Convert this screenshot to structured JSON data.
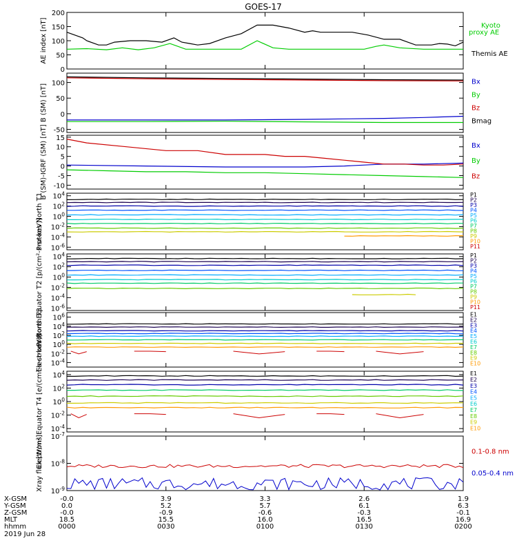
{
  "title": "GOES-17",
  "colors": {
    "black": "#000000",
    "green": "#00cc00",
    "red": "#cc0000",
    "blue": "#0000cc",
    "spectrum": [
      "#000000",
      "#1a0050",
      "#0000aa",
      "#0055ff",
      "#00aaff",
      "#00cccc",
      "#00cc66",
      "#66cc00",
      "#cccc00",
      "#ff9900",
      "#cc0000"
    ]
  },
  "chart_data": [
    {
      "type": "line",
      "panel": "ae",
      "ylabel": "AE index [nT]",
      "yticks": [
        "200",
        "150",
        "100",
        "50",
        "0"
      ],
      "ylim": [
        0,
        200
      ],
      "log": false,
      "series": [
        {
          "name": "Themis AE",
          "color": "#000000",
          "x": [
            0,
            2,
            4,
            5,
            8,
            10,
            12,
            16,
            20,
            24,
            27,
            29,
            31,
            33,
            36,
            40,
            44,
            48,
            52,
            56,
            60,
            62,
            64,
            68,
            72,
            76,
            80,
            84,
            86,
            88,
            90,
            92,
            94,
            96,
            98,
            100
          ],
          "y": [
            130,
            120,
            110,
            100,
            85,
            85,
            95,
            100,
            100,
            95,
            110,
            95,
            90,
            85,
            90,
            110,
            125,
            155,
            155,
            145,
            130,
            135,
            130,
            130,
            130,
            120,
            105,
            105,
            95,
            85,
            85,
            85,
            90,
            88,
            82,
            95
          ]
        },
        {
          "name": "Kyoto proxy AE",
          "color": "#00cc00",
          "x": [
            0,
            5,
            10,
            14,
            18,
            22,
            26,
            30,
            34,
            40,
            44,
            48,
            52,
            56,
            60,
            65,
            70,
            75,
            78,
            80,
            84,
            90,
            95,
            100
          ],
          "y": [
            70,
            72,
            68,
            75,
            68,
            75,
            90,
            70,
            70,
            70,
            70,
            100,
            75,
            70,
            70,
            70,
            70,
            70,
            80,
            85,
            75,
            70,
            70,
            70
          ]
        }
      ],
      "legend": [
        "Kyoto",
        "proxy AE",
        "Themis AE"
      ]
    },
    {
      "type": "line",
      "panel": "bsm",
      "ylabel": "B (SM) [nT]",
      "yticks": [
        "100",
        "50",
        "0",
        "-50"
      ],
      "ylim": [
        -60,
        130
      ],
      "log": false,
      "series": [
        {
          "name": "Bx",
          "color": "#0000cc",
          "x": [
            0,
            20,
            40,
            60,
            80,
            90,
            100
          ],
          "y": [
            -20,
            -20,
            -20,
            -18,
            -15,
            -12,
            -8
          ]
        },
        {
          "name": "By",
          "color": "#00cc00",
          "x": [
            0,
            20,
            40,
            60,
            80,
            100
          ],
          "y": [
            -25,
            -25,
            -24,
            -26,
            -28,
            -28
          ]
        },
        {
          "name": "Bz",
          "color": "#cc0000",
          "x": [
            0,
            20,
            40,
            60,
            80,
            100
          ],
          "y": [
            115,
            112,
            110,
            108,
            106,
            105
          ]
        },
        {
          "name": "Bmag",
          "color": "#000000",
          "x": [
            0,
            20,
            40,
            60,
            80,
            100
          ],
          "y": [
            118,
            115,
            113,
            111,
            109,
            108
          ]
        }
      ],
      "legend": [
        "Bx",
        "By",
        "Bz",
        "Bmag"
      ]
    },
    {
      "type": "line",
      "panel": "bigrf",
      "ylabel": "B (SM)-IGRF (SM) [nT]",
      "yticks": [
        "15",
        "10",
        "5",
        "0",
        "-5",
        "-10"
      ],
      "ylim": [
        -12,
        16
      ],
      "log": false,
      "series": [
        {
          "name": "Bx",
          "color": "#0000cc",
          "x": [
            0,
            20,
            40,
            60,
            70,
            80,
            90,
            100
          ],
          "y": [
            0.5,
            0,
            -0.5,
            -0.5,
            0,
            1,
            1,
            1.5
          ]
        },
        {
          "name": "By",
          "color": "#00cc00",
          "x": [
            0,
            10,
            20,
            30,
            40,
            50,
            60,
            70,
            80,
            90,
            100
          ],
          "y": [
            -2,
            -2.5,
            -3,
            -3,
            -3.5,
            -3.5,
            -4,
            -4.5,
            -5,
            -5.5,
            -6
          ]
        },
        {
          "name": "Bz",
          "color": "#cc0000",
          "x": [
            0,
            5,
            15,
            25,
            33,
            40,
            50,
            55,
            60,
            65,
            70,
            75,
            80,
            85,
            90,
            95,
            100
          ],
          "y": [
            14,
            12,
            10,
            8,
            8,
            6,
            6,
            5,
            5,
            4,
            3,
            2,
            1,
            1,
            0.5,
            0.5,
            1
          ]
        }
      ],
      "legend": [
        "Bx",
        "By",
        "Bz"
      ]
    },
    {
      "type": "line",
      "panel": "pnt1",
      "ylabel": "Protons North T1",
      "yticks": [
        "10^4",
        "10^2",
        "10^0",
        "10^-2",
        "10^-4",
        "10^-6"
      ],
      "ylim": [
        -6.5,
        4.5
      ],
      "log": true,
      "channels": [
        "P1",
        "P2",
        "P3",
        "P4",
        "P5",
        "P6",
        "P7",
        "P8",
        "P9",
        "P10",
        "P11"
      ],
      "series": [
        {
          "name": "P1",
          "color": "#000000",
          "level": 3.3
        },
        {
          "name": "P2",
          "color": "#1a0050",
          "level": 2.7
        },
        {
          "name": "P3",
          "color": "#0000aa",
          "level": 2.0
        },
        {
          "name": "P4",
          "color": "#0055ff",
          "level": 1.2
        },
        {
          "name": "P5",
          "color": "#00aaff",
          "level": 0.3
        },
        {
          "name": "P6",
          "color": "#00cccc",
          "level": -0.6
        },
        {
          "name": "P7",
          "color": "#00cc66",
          "level": -1.4
        },
        {
          "name": "P8",
          "color": "#66cc00",
          "level": -2.3
        },
        {
          "name": "P9",
          "color": "#cccc00",
          "level": -3.0
        },
        {
          "name": "P10",
          "color": "#ff9900",
          "level": -3.8,
          "start": 70
        }
      ]
    },
    {
      "type": "line",
      "panel": "pet2",
      "ylabel": "Protons Equator T2 [p/(cm^2-s-sr-keV)]",
      "yticks": [
        "10^4",
        "10^2",
        "10^0",
        "10^-2",
        "10^-4",
        "10^-6"
      ],
      "ylim": [
        -6.5,
        4.5
      ],
      "log": true,
      "channels": [
        "P1",
        "P2",
        "P3",
        "P4",
        "P5",
        "P6",
        "P7",
        "P8",
        "P9",
        "P10",
        "P11"
      ],
      "series": [
        {
          "name": "P1",
          "color": "#000000",
          "level": 3.6
        },
        {
          "name": "P2",
          "color": "#1a0050",
          "level": 3.0
        },
        {
          "name": "P3",
          "color": "#0000aa",
          "level": 2.3
        },
        {
          "name": "P4",
          "color": "#0055ff",
          "level": 1.3
        },
        {
          "name": "P5",
          "color": "#00aaff",
          "level": 0.4
        },
        {
          "name": "P6",
          "color": "#00cccc",
          "level": -0.5
        },
        {
          "name": "P7",
          "color": "#00cc66",
          "level": -1.2
        },
        {
          "name": "P8",
          "color": "#66cc00",
          "level": -2.2
        },
        {
          "name": "P9",
          "color": "#cccc00",
          "level": -3.4,
          "start": 72,
          "end": 88
        }
      ]
    },
    {
      "type": "line",
      "panel": "ent3",
      "ylabel": "Electrons North T3",
      "yticks": [
        "10^6",
        "10^4",
        "10^2",
        "10^0",
        "10^-2",
        "10^-4"
      ],
      "ylim": [
        -5,
        7
      ],
      "log": true,
      "channels": [
        "E1",
        "E2",
        "E3",
        "E4",
        "E5",
        "E6",
        "E7",
        "E8",
        "E9",
        "E10"
      ],
      "series": [
        {
          "name": "E1",
          "color": "#000000",
          "level": 4.5
        },
        {
          "name": "E2",
          "color": "#1a0050",
          "level": 3.8
        },
        {
          "name": "E3",
          "color": "#0000aa",
          "level": 3.0
        },
        {
          "name": "E4",
          "color": "#0055ff",
          "level": 2.4
        },
        {
          "name": "E5",
          "color": "#00aaff",
          "level": 1.8
        },
        {
          "name": "E6",
          "color": "#00cc66",
          "level": 1.0
        },
        {
          "name": "E7",
          "color": "#cccc00",
          "level": 0.2
        },
        {
          "name": "E8",
          "color": "#ff9900",
          "level": -0.6
        },
        {
          "name": "E9",
          "color": "#cc0000",
          "level": -1.8,
          "segments": true
        }
      ]
    },
    {
      "type": "line",
      "panel": "eet4",
      "ylabel": "Electrons Equator T4 [e/(cm^2-s-sr-keV)]",
      "yticks": [
        "10^4",
        "10^2",
        "10^0",
        "10^-2",
        "10^-4"
      ],
      "ylim": [
        -4.5,
        4.5
      ],
      "log": true,
      "channels": [
        "E1",
        "E2",
        "E3",
        "E4",
        "E5",
        "E6",
        "E7",
        "E8",
        "E9",
        "E10"
      ],
      "series": [
        {
          "name": "E1",
          "color": "#000000",
          "level": 3.8
        },
        {
          "name": "E2",
          "color": "#1a0050",
          "level": 3.2
        },
        {
          "name": "E3",
          "color": "#0000aa",
          "level": 2.5
        },
        {
          "name": "E4",
          "color": "#00cc66",
          "level": 1.7
        },
        {
          "name": "E5",
          "color": "#66cc00",
          "level": 0.8
        },
        {
          "name": "E6",
          "color": "#cccc00",
          "level": -0.2
        },
        {
          "name": "E7",
          "color": "#ff9900",
          "level": -0.9
        },
        {
          "name": "E8",
          "color": "#cc0000",
          "level": -2.1,
          "segments": true
        }
      ]
    },
    {
      "type": "line",
      "panel": "xray",
      "ylabel": "Xray flux [W/m^2]",
      "yticks": [
        "10^-7",
        "10^-8",
        "10^-9"
      ],
      "ylim": [
        -9,
        -7
      ],
      "log": true,
      "series": [
        {
          "name": "0.1-0.8 nm",
          "color": "#cc0000"
        },
        {
          "name": "0.05-0.4 nm",
          "color": "#0000cc"
        }
      ],
      "legend": [
        "0.1-0.8 nm",
        "0.05-0.4 nm"
      ]
    }
  ],
  "footer": {
    "rows": [
      {
        "label": "X-GSM",
        "values": [
          "-0.0",
          "3.9",
          "3.3",
          "2.6",
          "1.9"
        ]
      },
      {
        "label": "Y-GSM",
        "values": [
          "0.0",
          "5.2",
          "5.7",
          "6.1",
          "6.3"
        ]
      },
      {
        "label": "Z-GSM",
        "values": [
          "-0.0",
          "-0.9",
          "-0.6",
          "-0.3",
          "-0.1"
        ]
      },
      {
        "label": "MLT",
        "values": [
          "18.5",
          "15.5",
          "16.0",
          "16.5",
          "16.9"
        ]
      },
      {
        "label": "hhmm",
        "values": [
          "0000",
          "0030",
          "0100",
          "0130",
          "0200"
        ]
      }
    ],
    "date": "2019 Jun 28"
  }
}
